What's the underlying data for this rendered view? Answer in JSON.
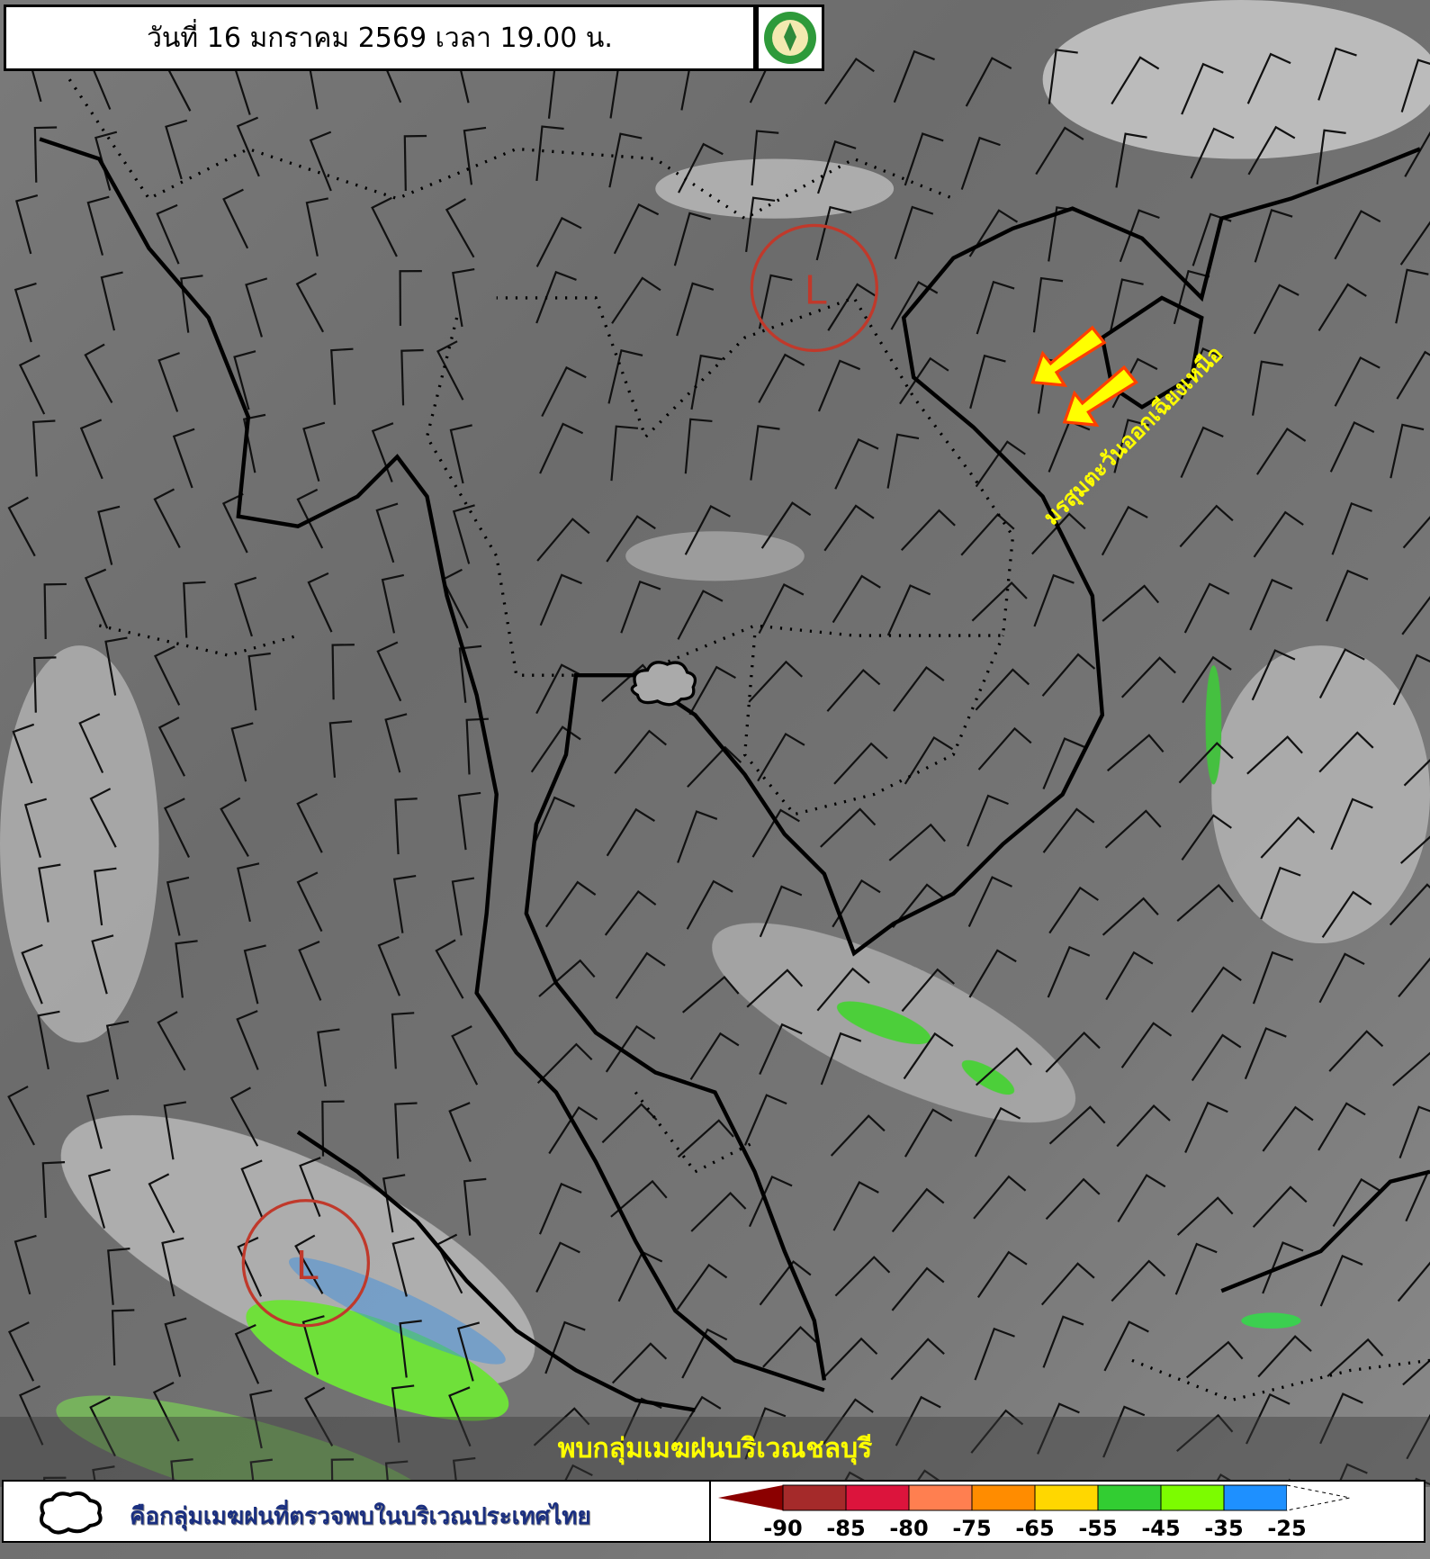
{
  "header": {
    "title": "วันที่ 16 มกราคม 2569 เวลา 19.00 น.",
    "logo_icon": "tmd-logo-icon"
  },
  "map": {
    "low_pressure_label": "L",
    "low_pressure_circle_color": "#c0392b",
    "monsoon_label": "มรสุมตะวันออกเฉียงเหนือ",
    "monsoon_arrow_color": "#ffff00",
    "monsoon_arrow_outline": "#ff4000"
  },
  "caption": "พบกลุ่มเมฆฝนบริเวณชลบุรี",
  "legend": {
    "cloud_icon": "cloud-outline-icon",
    "cloud_description": "คือกลุ่มเมฆฝนที่ตรวจพบในบริเวณประเทศไทย",
    "scale_colors": [
      "#8b0000",
      "#a52a2a",
      "#dc143c",
      "#ff7f50",
      "#ff8c00",
      "#ffd700",
      "#32cd32",
      "#7cfc00",
      "#1e90ff",
      "#ffffff"
    ],
    "ticks": [
      "-90",
      "-85",
      "-80",
      "-75",
      "-65",
      "-55",
      "-45",
      "-35",
      "-25"
    ]
  }
}
